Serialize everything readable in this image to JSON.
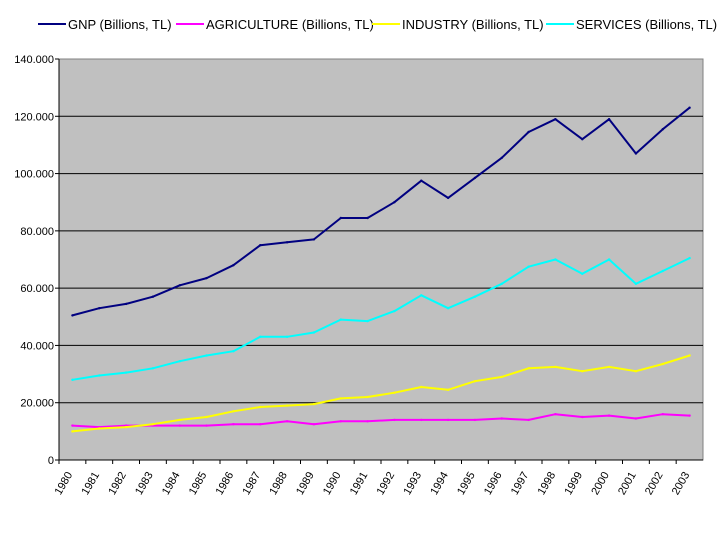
{
  "chart_data": {
    "type": "line",
    "title": "",
    "xlabel": "",
    "ylabel": "",
    "ylim": [
      0,
      140
    ],
    "y_ticks": [
      "0",
      "20.000",
      "40.000",
      "60.000",
      "80.000",
      "100.000",
      "120.000",
      "140.000"
    ],
    "categories": [
      "1980",
      "1981",
      "1982",
      "1983",
      "1984",
      "1985",
      "1986",
      "1987",
      "1988",
      "1989",
      "1990",
      "1991",
      "1992",
      "1993",
      "1994",
      "1995",
      "1996",
      "1997",
      "1998",
      "1999",
      "2000",
      "2001",
      "2002",
      "2003"
    ],
    "grid": true,
    "legend_position": "top",
    "plot_background": "#c0c0c0",
    "series": [
      {
        "name": "GNP (Billions, TL)",
        "color": "#000080",
        "values": [
          50.5,
          53.0,
          54.5,
          57.0,
          61.0,
          63.5,
          68.0,
          75.0,
          76.0,
          77.0,
          84.5,
          84.5,
          90.0,
          97.5,
          91.5,
          98.5,
          105.5,
          114.5,
          119.0,
          112.0,
          119.0,
          107.0,
          115.5,
          123.0
        ]
      },
      {
        "name": "AGRICULTURE (Billions, TL)",
        "color": "#ff00ff",
        "values": [
          12.0,
          11.5,
          12.0,
          12.0,
          12.0,
          12.0,
          12.5,
          12.5,
          13.5,
          12.5,
          13.5,
          13.5,
          14.0,
          14.0,
          14.0,
          14.0,
          14.5,
          14.0,
          16.0,
          15.0,
          15.5,
          14.5,
          16.0,
          15.5
        ]
      },
      {
        "name": "INDUSTRY (Billions, TL)",
        "color": "#ffff00",
        "values": [
          10.0,
          11.0,
          11.5,
          12.5,
          14.0,
          15.0,
          17.0,
          18.5,
          19.0,
          19.5,
          21.5,
          22.0,
          23.5,
          25.5,
          24.5,
          27.5,
          29.0,
          32.0,
          32.5,
          31.0,
          32.5,
          31.0,
          33.5,
          36.5
        ]
      },
      {
        "name": "SERVICES (Billions, TL)",
        "color": "#00ffff",
        "values": [
          28.0,
          29.5,
          30.5,
          32.0,
          34.5,
          36.5,
          38.0,
          43.0,
          43.0,
          44.5,
          49.0,
          48.5,
          52.0,
          57.5,
          53.0,
          57.0,
          61.5,
          67.5,
          70.0,
          65.0,
          70.0,
          61.5,
          66.0,
          70.5
        ]
      }
    ]
  }
}
